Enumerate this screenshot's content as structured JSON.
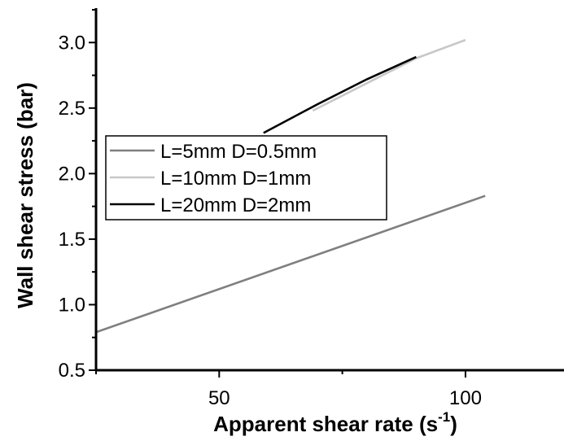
{
  "chart_data": {
    "type": "line",
    "title": "",
    "xlabel": "Apparent shear rate (s",
    "xlabel_sup": "-1",
    "xlabel_suffix": ")",
    "ylabel": "Wall shear stress (bar)",
    "xlim": [
      25,
      120
    ],
    "ylim": [
      0.5,
      3.25
    ],
    "xticks": [
      50,
      100
    ],
    "xtick_labels": [
      "50",
      "100"
    ],
    "yticks": [
      0.5,
      1.0,
      1.5,
      2.0,
      2.5,
      3.0
    ],
    "ytick_labels": [
      "0.5",
      "1.0",
      "1.5",
      "2.0",
      "2.5",
      "3.0"
    ],
    "grid": false,
    "legend_position": "center-left",
    "series": [
      {
        "name": "L=5mm D=0.5mm",
        "color": "#7f7f7f",
        "x": [
          25,
          104
        ],
        "y": [
          0.79,
          1.83
        ]
      },
      {
        "name": "L=10mm D=1mm",
        "color": "#c8c8c8",
        "x": [
          69,
          80,
          90,
          100
        ],
        "y": [
          2.48,
          2.69,
          2.88,
          3.02
        ]
      },
      {
        "name": "L=20mm D=2mm",
        "color": "#000000",
        "x": [
          59,
          70,
          80,
          90
        ],
        "y": [
          2.31,
          2.53,
          2.72,
          2.89
        ]
      }
    ]
  }
}
